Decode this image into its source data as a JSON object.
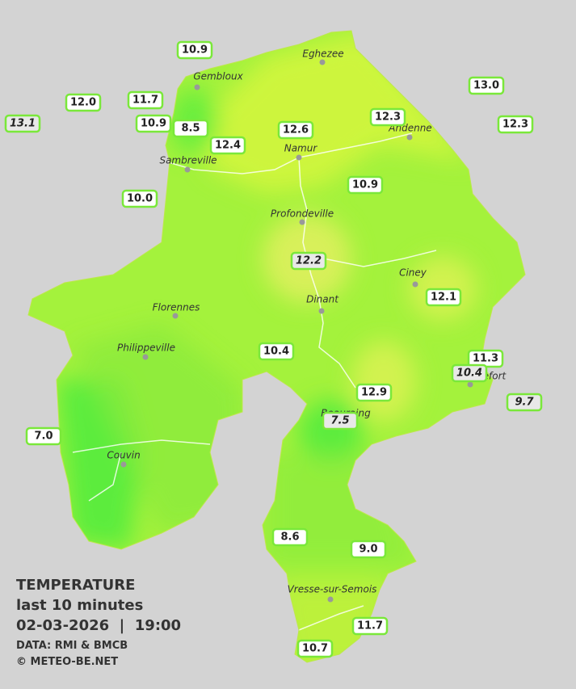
{
  "cities": [
    "Eghezee",
    "Gembloux",
    "Andenne",
    "Namur",
    "Sambreville",
    "Profondeville",
    "Ciney",
    "Dinant",
    "Florennes",
    "Philippeville",
    "Rochefort",
    "Beauraing",
    "Couvin",
    "Vresse-sur-Semois"
  ],
  "readings": [
    "10.9",
    "12.0",
    "11.7",
    "13.1",
    "10.9",
    "8.5",
    "12.4",
    "12.6",
    "12.3",
    "13.0",
    "12.3",
    "10.0",
    "10.9",
    "12.2",
    "12.1",
    "10.4",
    "11.3",
    "10.4",
    "9.7",
    "12.9",
    "7.5",
    "7.0",
    "8.6",
    "9.0",
    "11.7",
    "10.7"
  ],
  "legend": {
    "title": "TEMPERATURE",
    "subtitle": "last 10 minutes",
    "datetime": "02-03-2026  |  19:00",
    "source": "DATA: RMI & BMCB",
    "credit": "© METEO-BE.NET"
  }
}
